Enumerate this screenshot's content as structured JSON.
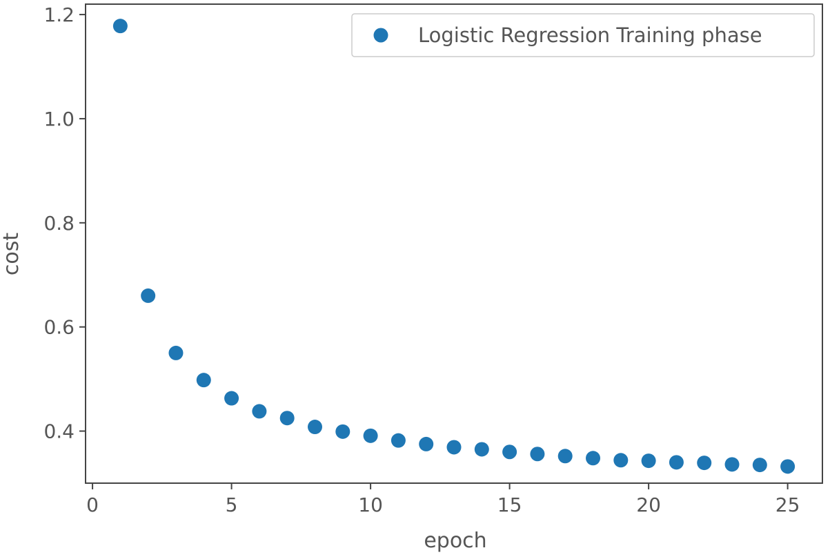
{
  "chart_data": {
    "type": "scatter",
    "title": "",
    "xlabel": "epoch",
    "ylabel": "cost",
    "xlim": [
      -0.25,
      26.25
    ],
    "ylim": [
      0.3,
      1.22
    ],
    "xticks": [
      0,
      5,
      10,
      15,
      20,
      25
    ],
    "xtick_labels": [
      "0",
      "5",
      "10",
      "15",
      "20",
      "25"
    ],
    "yticks": [
      0.4,
      0.6,
      0.8,
      1.0,
      1.2
    ],
    "ytick_labels": [
      "0.4",
      "0.6",
      "0.8",
      "1.0",
      "1.2"
    ],
    "grid": false,
    "legend_position": "upper-right",
    "series": [
      {
        "name": "Logistic Regression Training phase",
        "color": "#1f77b4",
        "marker": "circle",
        "x": [
          1,
          2,
          3,
          4,
          5,
          6,
          7,
          8,
          9,
          10,
          11,
          12,
          13,
          14,
          15,
          16,
          17,
          18,
          19,
          20,
          21,
          22,
          23,
          24,
          25
        ],
        "y": [
          1.178,
          0.66,
          0.55,
          0.498,
          0.463,
          0.438,
          0.425,
          0.408,
          0.399,
          0.391,
          0.382,
          0.375,
          0.369,
          0.365,
          0.36,
          0.356,
          0.352,
          0.348,
          0.344,
          0.343,
          0.34,
          0.339,
          0.336,
          0.335,
          0.332
        ]
      }
    ]
  }
}
